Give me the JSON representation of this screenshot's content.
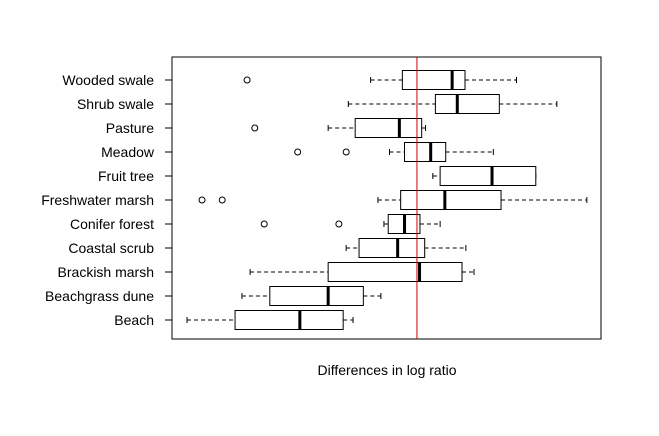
{
  "chart_data": {
    "type": "boxplot",
    "orientation": "horizontal",
    "xlabel": "Differences in log ratio",
    "ylabel": "",
    "title": "",
    "xlim": [
      0,
      100
    ],
    "reference_line": {
      "x": 57.1,
      "color": "#cc0000"
    },
    "grid": false,
    "categories": [
      "Wooded swale",
      "Shrub swale",
      "Pasture",
      "Meadow",
      "Fruit tree",
      "Freshwater marsh",
      "Conifer forest",
      "Coastal scrub",
      "Brackish marsh",
      "Beachgrass dune",
      "Beach"
    ],
    "boxes": [
      {
        "name": "Wooded swale",
        "whisker_low": 46.3,
        "q1": 53.7,
        "median": 65.3,
        "q3": 68.3,
        "whisker_high": 80.3,
        "outliers": [
          17.5
        ]
      },
      {
        "name": "Shrub swale",
        "whisker_low": 41.1,
        "q1": 61.4,
        "median": 66.5,
        "q3": 76.3,
        "whisker_high": 89.7,
        "outliers": []
      },
      {
        "name": "Pasture",
        "whisker_low": 36.4,
        "q1": 42.7,
        "median": 53.0,
        "q3": 58.2,
        "whisker_high": 59.1,
        "outliers": [
          19.3
        ]
      },
      {
        "name": "Meadow",
        "whisker_low": 50.7,
        "q1": 54.2,
        "median": 60.3,
        "q3": 63.8,
        "whisker_high": 74.9,
        "outliers": [
          29.3,
          40.6
        ]
      },
      {
        "name": "Fruit tree",
        "whisker_low": 60.8,
        "q1": 62.5,
        "median": 74.6,
        "q3": 84.8,
        "whisker_high": 84.8,
        "outliers": []
      },
      {
        "name": "Freshwater marsh",
        "whisker_low": 48.0,
        "q1": 53.3,
        "median": 63.6,
        "q3": 76.7,
        "whisker_high": 96.7,
        "outliers": [
          7.0,
          11.7
        ]
      },
      {
        "name": "Conifer forest",
        "whisker_low": 49.4,
        "q1": 50.4,
        "median": 54.2,
        "q3": 57.8,
        "whisker_high": 62.5,
        "outliers": [
          21.5,
          38.9
        ]
      },
      {
        "name": "Coastal scrub",
        "whisker_low": 40.6,
        "q1": 43.6,
        "median": 52.6,
        "q3": 58.9,
        "whisker_high": 68.5,
        "outliers": []
      },
      {
        "name": "Brackish marsh",
        "whisker_low": 18.2,
        "q1": 36.4,
        "median": 57.7,
        "q3": 67.6,
        "whisker_high": 70.4,
        "outliers": []
      },
      {
        "name": "Beachgrass dune",
        "whisker_low": 16.3,
        "q1": 22.8,
        "median": 36.4,
        "q3": 44.6,
        "whisker_high": 48.7,
        "outliers": []
      },
      {
        "name": "Beach",
        "whisker_low": 3.5,
        "q1": 14.7,
        "median": 29.8,
        "q3": 39.9,
        "whisker_high": 42.2,
        "outliers": []
      }
    ]
  }
}
